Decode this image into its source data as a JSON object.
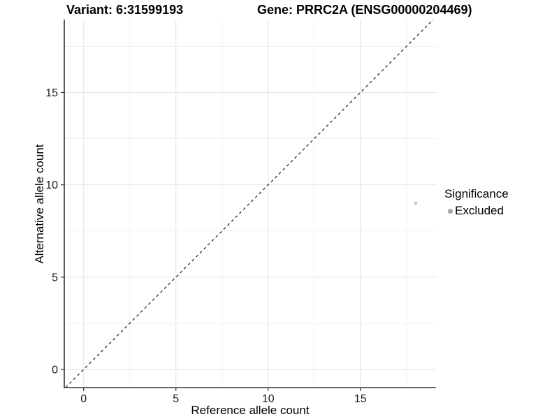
{
  "header": {
    "variant_title": "Variant: 6:31599193",
    "gene_title": "Gene: PRRC2A (ENSG00000204469)"
  },
  "chart_data": {
    "type": "scatter",
    "xlabel": "Reference allele count",
    "ylabel": "Alternative allele count",
    "xlim": [
      -1.05,
      19.1
    ],
    "ylim": [
      -0.98,
      18.95
    ],
    "x_ticks": [
      0,
      5,
      10,
      15
    ],
    "y_ticks": [
      0,
      5,
      10,
      15
    ],
    "x_minor_ticks": [
      2.5,
      7.5,
      12.5,
      17.5
    ],
    "y_minor_ticks": [
      2.5,
      7.5,
      12.5,
      17.5
    ],
    "grid": "major and minor gridlines, light gray on white panel, open top/right",
    "identity_line": {
      "slope": 1,
      "intercept": 0,
      "style": "dashed"
    },
    "series": [
      {
        "name": "Excluded",
        "point_color": "#c4c4c4",
        "point_radius": 2.3,
        "points": [
          {
            "x": 18,
            "y": 9
          }
        ]
      }
    ],
    "legend": {
      "title": "Significance",
      "position": "right",
      "entries": [
        {
          "label": "Excluded",
          "color": "#a6a6a6"
        }
      ]
    }
  },
  "colors": {
    "background": "#ffffff",
    "axis_line": "#333333",
    "tick_mark": "#333333",
    "tick_label": "#1a1a1a",
    "grid_major": "#e4e4e4",
    "grid_minor": "#f1f1f1",
    "identity_line": "#1a1a1a"
  }
}
